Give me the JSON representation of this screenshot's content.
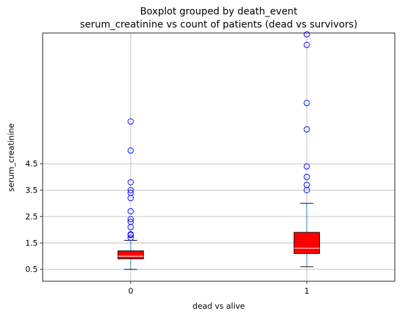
{
  "chart_data": {
    "type": "boxplot",
    "title_line1": "Boxplot grouped by death_event",
    "title_line2": "serum_creatinine vs count of patients (dead vs survivors)",
    "xlabel": "dead vs alive",
    "ylabel": "serum_creatinine",
    "categories": [
      "0",
      "1"
    ],
    "yticks": [
      "0.5",
      "1.5",
      "2.5",
      "3.5",
      "4.5"
    ],
    "ylim": [
      0.05,
      9.45
    ],
    "grid": true,
    "colors": {
      "box_fill": "#ff0000",
      "box_edge": "#000000",
      "median": "#ffffff",
      "whisker": "#1f77b4",
      "flier": "#0000ff",
      "grid": "#b0b0b0"
    },
    "boxes": [
      {
        "category": "0",
        "whisker_low": 0.5,
        "q1": 0.9,
        "median": 1.0,
        "q3": 1.2,
        "whisker_high": 1.6,
        "fliers": [
          1.7,
          1.8,
          1.83,
          2.1,
          2.3,
          2.4,
          2.7,
          3.2,
          3.4,
          3.5,
          3.8,
          5.0,
          6.1
        ]
      },
      {
        "category": "1",
        "whisker_low": 0.6,
        "q1": 1.1,
        "median": 1.3,
        "q3": 1.9,
        "whisker_high": 3.0,
        "fliers": [
          3.5,
          3.7,
          4.0,
          4.4,
          5.8,
          6.8,
          9.0,
          9.4
        ]
      }
    ]
  }
}
